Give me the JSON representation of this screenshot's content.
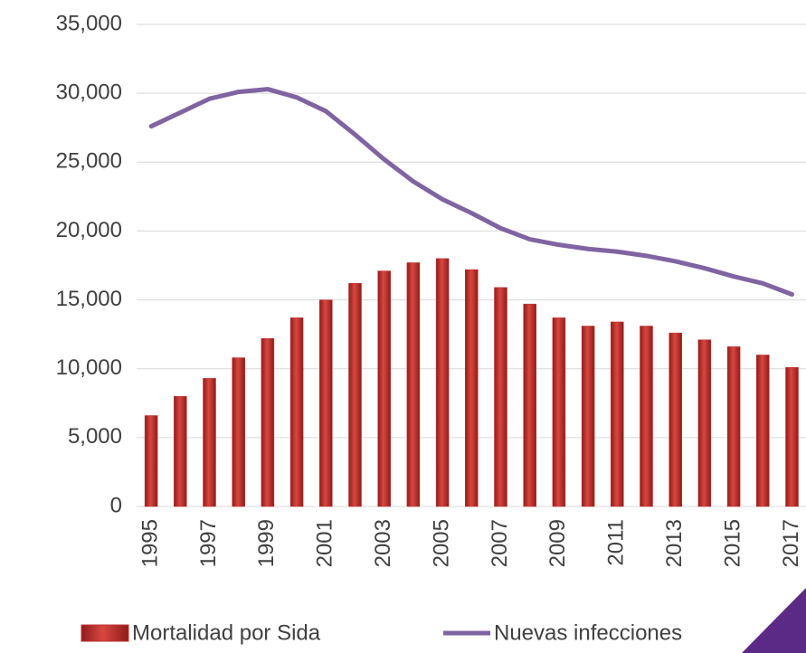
{
  "chart_data": {
    "type": "bar_line",
    "categories": [
      "1995",
      null,
      "1997",
      null,
      "1999",
      null,
      "2001",
      null,
      "2003",
      null,
      "2005",
      null,
      "2007",
      null,
      "2009",
      null,
      "2011",
      null,
      "2013",
      null,
      "2015",
      null,
      "2017"
    ],
    "series": [
      {
        "name": "Mortalidad por Sida",
        "type": "bar",
        "color": "#c0302e",
        "values": [
          6600,
          8000,
          9300,
          10800,
          12200,
          13700,
          15000,
          16200,
          17100,
          17700,
          18000,
          17200,
          15900,
          14700,
          13700,
          13100,
          13400,
          13100,
          12600,
          12100,
          11600,
          11000,
          10100
        ]
      },
      {
        "name": "Nuevas infecciones",
        "type": "line",
        "color": "#8064a2",
        "values": [
          27600,
          28600,
          29600,
          30100,
          30300,
          29700,
          28700,
          27000,
          25200,
          23600,
          22300,
          21300,
          20200,
          19400,
          19000,
          18700,
          18500,
          18200,
          17800,
          17300,
          16700,
          16200,
          15400
        ]
      }
    ],
    "ylim": [
      0,
      35000
    ],
    "yticks": [
      0,
      {
        "value": 5000,
        "label": "5,000"
      },
      {
        "value": 10000,
        "label": "10,000"
      },
      {
        "value": 15000,
        "label": "15,000"
      },
      {
        "value": 20000,
        "label": "20,000"
      },
      {
        "value": 25000,
        "label": "25,000"
      },
      {
        "value": 30000,
        "label": "30,000"
      },
      {
        "value": 35000,
        "label": "35,000"
      }
    ],
    "grid": true,
    "legend": "bottom"
  }
}
